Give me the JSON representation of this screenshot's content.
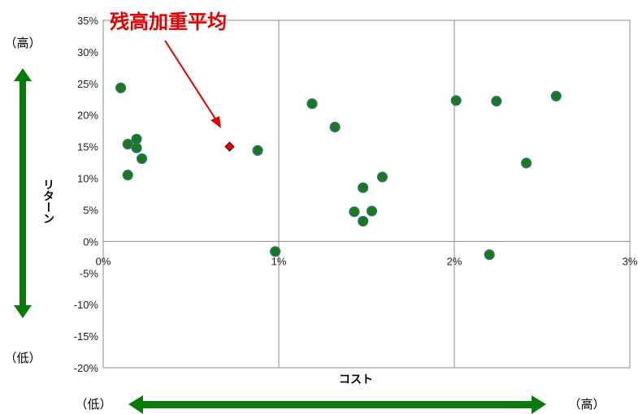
{
  "chart_data": {
    "type": "scatter",
    "xlabel": "コスト",
    "ylabel": "リターン",
    "xlim": [
      0,
      3
    ],
    "ylim": [
      -20,
      35
    ],
    "x_ticks": [
      "0%",
      "1%",
      "2%",
      "3%"
    ],
    "y_ticks": [
      "35%",
      "30%",
      "25%",
      "20%",
      "15%",
      "10%",
      "5%",
      "0%",
      "-5%",
      "-10%",
      "-15%",
      "-20%"
    ],
    "grid": "vertical",
    "series": [
      {
        "marker": "circle",
        "color": "#1a7a1a",
        "points": [
          {
            "x": 0.1,
            "y": 24.3
          },
          {
            "x": 0.14,
            "y": 15.4
          },
          {
            "x": 0.14,
            "y": 10.5
          },
          {
            "x": 0.19,
            "y": 16.2
          },
          {
            "x": 0.19,
            "y": 14.8
          },
          {
            "x": 0.22,
            "y": 13.1
          },
          {
            "x": 0.88,
            "y": 14.4
          },
          {
            "x": 0.98,
            "y": -1.6
          },
          {
            "x": 1.19,
            "y": 21.8
          },
          {
            "x": 1.32,
            "y": 18.1
          },
          {
            "x": 1.43,
            "y": 4.7
          },
          {
            "x": 1.48,
            "y": 8.5
          },
          {
            "x": 1.48,
            "y": 3.2
          },
          {
            "x": 1.53,
            "y": 4.8
          },
          {
            "x": 1.59,
            "y": 10.2
          },
          {
            "x": 2.01,
            "y": 22.3
          },
          {
            "x": 2.2,
            "y": -2.1
          },
          {
            "x": 2.24,
            "y": 22.2
          },
          {
            "x": 2.41,
            "y": 12.4
          },
          {
            "x": 2.58,
            "y": 23.0
          }
        ]
      },
      {
        "name": "残高加重平均",
        "marker": "diamond",
        "color": "#e00000",
        "points": [
          {
            "x": 0.72,
            "y": 15.0
          }
        ]
      }
    ],
    "annotation": {
      "text": "残高加重平均",
      "color": "#e00000",
      "target": {
        "x": 0.72,
        "y": 15.0
      }
    }
  },
  "labels": {
    "high_top": "（高）",
    "low_left": "（低）",
    "low_bottom": "（低）",
    "high_right": "（高）"
  },
  "colors": {
    "arrow": "#0a7a0a",
    "annotation": "#e00000"
  }
}
